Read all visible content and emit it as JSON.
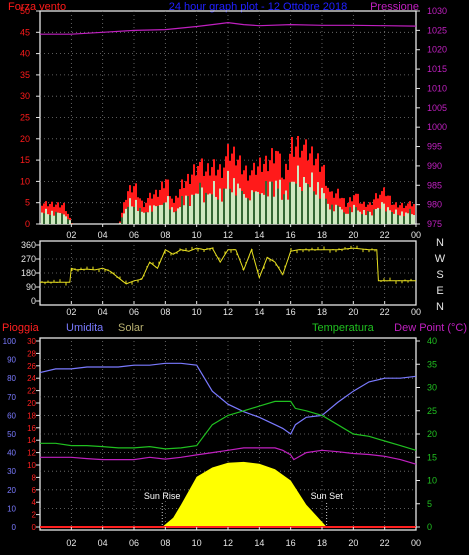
{
  "colors": {
    "background": "#000000",
    "frame": "#e6e6e6",
    "wind_speed": "#ff1a1a",
    "wind_avg": "#cfe8c0",
    "wind_dark": "#336633",
    "pressure": "#c020c0",
    "direction": "#e8e020",
    "humidity": "#7a7aff",
    "temperature": "#20c020",
    "dewpoint": "#c020c0",
    "solar": "#ffff00",
    "rain": "#ff2020",
    "title": "#2020ff",
    "grid": "#7a7a7a"
  },
  "header": {
    "left_title": "Forza vento",
    "center_title": "24 hour graph plot - 12 Ottobre 2018",
    "right_title": "Pressione"
  },
  "legend": {
    "rain": "Pioggia",
    "humidity": "Umidita",
    "solar": "Solar",
    "temperature": "Temperatura",
    "dewpoint": "Dew Point (°C)"
  },
  "markers": {
    "sunrise": "Sun Rise",
    "sunset": "Sun Set"
  },
  "chart_data": [
    {
      "type": "area",
      "panel": "wind-pressure",
      "ylim": [
        0,
        50
      ],
      "yticks": [
        0,
        5,
        10,
        15,
        20,
        25,
        30,
        35,
        40,
        45,
        50
      ],
      "y2lim": [
        975,
        1030
      ],
      "y2ticks": [
        975,
        980,
        985,
        990,
        995,
        1000,
        1005,
        1010,
        1015,
        1020,
        1025,
        1030
      ],
      "xticks": [
        "02",
        "04",
        "06",
        "08",
        "10",
        "12",
        "14",
        "16",
        "18",
        "20",
        "22",
        "00"
      ],
      "x_hours": [
        0,
        24
      ],
      "series": [
        {
          "name": "Forza vento",
          "axis": "left",
          "x": [
            0,
            0.5,
            1,
            1.5,
            2,
            3,
            4,
            5,
            5.5,
            6,
            6.5,
            7,
            7.5,
            8,
            8.5,
            9,
            9.5,
            10,
            10.5,
            11,
            11.5,
            12,
            12.5,
            13,
            13.5,
            14,
            14.5,
            15,
            15.5,
            16,
            16.5,
            17,
            17.5,
            18,
            18.5,
            19,
            19.5,
            20,
            20.5,
            21,
            21.5,
            22,
            22.5,
            23,
            23.5,
            24
          ],
          "y": [
            5,
            5,
            5,
            5,
            0,
            0,
            0,
            0,
            8,
            10,
            5,
            7,
            8,
            12,
            5,
            10,
            12,
            16,
            13,
            15,
            14,
            18,
            17,
            14,
            13,
            15,
            16,
            20,
            11,
            20,
            21,
            18,
            17,
            15,
            7,
            8,
            5,
            8,
            5,
            5,
            8,
            8,
            5,
            5,
            5,
            5
          ]
        },
        {
          "name": "Pressione",
          "axis": "right",
          "x": [
            0,
            2,
            4,
            6,
            8,
            10,
            11,
            12,
            13,
            14,
            16,
            18,
            20,
            22,
            24
          ],
          "y": [
            1024,
            1024,
            1024.5,
            1025,
            1025.2,
            1026,
            1026.5,
            1027,
            1026.5,
            1026.2,
            1026.5,
            1026.3,
            1026.3,
            1026.2,
            1026.1
          ]
        }
      ]
    },
    {
      "type": "line",
      "panel": "wind-direction",
      "ylim": [
        0,
        360
      ],
      "yticks": [
        0,
        90,
        180,
        270,
        360
      ],
      "direction_labels": [
        "N",
        "W",
        "S",
        "E",
        "N"
      ],
      "xticks": [
        "02",
        "04",
        "06",
        "08",
        "10",
        "12",
        "14",
        "16",
        "18",
        "20",
        "22",
        "00"
      ],
      "series": [
        {
          "name": "direzione",
          "x": [
            0,
            1.9,
            2,
            2.3,
            3,
            3.5,
            4,
            4.5,
            5,
            5.5,
            6,
            6.5,
            7,
            7.5,
            8,
            8.5,
            9,
            9.5,
            10,
            10.5,
            11,
            11.5,
            12,
            12.5,
            13,
            13.5,
            14,
            14.5,
            15,
            15.5,
            16,
            16.5,
            17,
            18,
            19,
            20,
            21,
            21.5,
            21.6,
            22,
            23,
            24
          ],
          "y": [
            120,
            120,
            210,
            200,
            205,
            200,
            210,
            190,
            150,
            110,
            130,
            140,
            250,
            210,
            330,
            300,
            330,
            320,
            340,
            330,
            340,
            250,
            330,
            330,
            200,
            330,
            150,
            280,
            250,
            170,
            320,
            330,
            330,
            330,
            330,
            340,
            330,
            330,
            130,
            130,
            130,
            130
          ]
        }
      ]
    },
    {
      "type": "line",
      "panel": "weather",
      "y_pioggia_lim": [
        0,
        30
      ],
      "y_pioggia_ticks": [
        0,
        2,
        4,
        6,
        8,
        10,
        12,
        14,
        16,
        18,
        20,
        22,
        24,
        26,
        28,
        30
      ],
      "y_umidita_lim": [
        0,
        100
      ],
      "y_umidita_ticks": [
        0,
        10,
        20,
        30,
        40,
        50,
        60,
        70,
        80,
        90,
        100
      ],
      "y_temp_lim": [
        0,
        40
      ],
      "y_temp_ticks": [
        0,
        5,
        10,
        15,
        20,
        25,
        30,
        35,
        40
      ],
      "xticks": [
        "02",
        "04",
        "06",
        "08",
        "10",
        "12",
        "14",
        "16",
        "18",
        "20",
        "22",
        "00"
      ],
      "series": [
        {
          "name": "Umidita",
          "axis": "umidita",
          "x": [
            0,
            1,
            2,
            3,
            4,
            5,
            6,
            7,
            8,
            9,
            10,
            10.5,
            11,
            12,
            13,
            14,
            15,
            15.5,
            16,
            16.3,
            17,
            18,
            19,
            20,
            21,
            22,
            23,
            24
          ],
          "y": [
            83,
            85,
            85,
            86,
            86,
            86,
            87,
            87,
            88,
            88,
            87,
            80,
            73,
            66,
            62,
            59,
            55,
            53,
            50,
            55,
            59,
            60,
            67,
            73,
            78,
            80,
            80,
            81
          ]
        },
        {
          "name": "Temperatura",
          "axis": "temp",
          "x": [
            0,
            1,
            2,
            3,
            4,
            5,
            6,
            7,
            8,
            9,
            10,
            11,
            12,
            13,
            14,
            15,
            16,
            16.3,
            17,
            18,
            19,
            20,
            21,
            22,
            23,
            24
          ],
          "y": [
            18,
            18,
            17.5,
            17.5,
            17.3,
            17,
            17,
            17.3,
            16.8,
            17,
            17.5,
            22,
            24,
            25,
            26,
            27,
            27,
            25.5,
            25,
            24,
            22,
            20,
            19.5,
            18.5,
            17.5,
            16.5
          ]
        },
        {
          "name": "Dew Point (°C)",
          "axis": "temp",
          "x": [
            0,
            1,
            2,
            3,
            4,
            5,
            6,
            7,
            8,
            9,
            10,
            11,
            12,
            13,
            14,
            15,
            15.5,
            16,
            16.2,
            17,
            18,
            19,
            20,
            21,
            22,
            23,
            24
          ],
          "y": [
            15,
            15,
            15,
            14.7,
            14.5,
            14.5,
            14.5,
            15,
            14.6,
            15,
            15.5,
            16,
            16.5,
            17,
            17,
            17,
            16.5,
            15.5,
            14.5,
            16,
            16.5,
            16.2,
            15.8,
            15.6,
            15.2,
            14.5,
            13.5
          ]
        },
        {
          "name": "Solar",
          "axis": "umidita",
          "x": [
            0,
            7.8,
            8.5,
            9,
            10,
            11,
            12,
            13,
            14,
            15,
            16,
            17,
            18.3,
            24
          ],
          "y": [
            0,
            0,
            5,
            12,
            27,
            32,
            34.5,
            35,
            34,
            31,
            25,
            12,
            0,
            0
          ]
        },
        {
          "name": "Pioggia",
          "axis": "pioggia",
          "x": [
            0,
            24
          ],
          "y": [
            0,
            0
          ]
        }
      ],
      "events": {
        "sunrise_hour": 7.8,
        "sunset_hour": 18.3
      }
    }
  ]
}
